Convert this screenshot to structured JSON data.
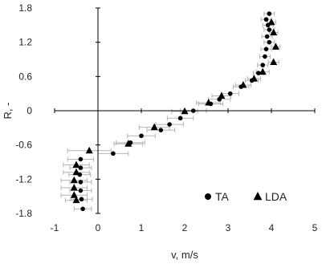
{
  "chart_data": {
    "type": "scatter",
    "title": "",
    "xlabel": "v, m/s",
    "ylabel": "R, -",
    "xlim": [
      -1,
      5
    ],
    "ylim": [
      -1.8,
      1.8
    ],
    "x_ticks": [
      "-1",
      "0",
      "1",
      "2",
      "3",
      "4",
      "5"
    ],
    "y_ticks": [
      "1.8",
      "1.2",
      "0.6",
      "0",
      "-0.6",
      "-1.2",
      "-1.8"
    ],
    "grid": false,
    "legend_position": "bottom-right",
    "series": [
      {
        "name": "TA",
        "marker": "circle",
        "color": "#000000",
        "error_bars": "horizontal",
        "error_color": "#b5b5b5",
        "points": [
          {
            "x": 3.95,
            "y": 1.7,
            "xerr": 0.12
          },
          {
            "x": 3.88,
            "y": 1.6,
            "xerr": 0.12
          },
          {
            "x": 3.92,
            "y": 1.5,
            "xerr": 0.12
          },
          {
            "x": 3.95,
            "y": 1.42,
            "xerr": 0.12
          },
          {
            "x": 3.9,
            "y": 1.3,
            "xerr": 0.12
          },
          {
            "x": 3.95,
            "y": 1.2,
            "xerr": 0.12
          },
          {
            "x": 3.88,
            "y": 1.08,
            "xerr": 0.12
          },
          {
            "x": 3.85,
            "y": 0.95,
            "xerr": 0.12
          },
          {
            "x": 3.8,
            "y": 0.8,
            "xerr": 0.12
          },
          {
            "x": 3.7,
            "y": 0.66,
            "xerr": 0.12
          },
          {
            "x": 3.55,
            "y": 0.53,
            "xerr": 0.15
          },
          {
            "x": 3.3,
            "y": 0.42,
            "xerr": 0.18
          },
          {
            "x": 3.05,
            "y": 0.3,
            "xerr": 0.2
          },
          {
            "x": 2.8,
            "y": 0.2,
            "xerr": 0.25
          },
          {
            "x": 2.6,
            "y": 0.12,
            "xerr": 0.28
          },
          {
            "x": 2.2,
            "y": 0.0,
            "xerr": 0.3
          },
          {
            "x": 1.9,
            "y": -0.13,
            "xerr": 0.3
          },
          {
            "x": 1.65,
            "y": -0.24,
            "xerr": 0.32
          },
          {
            "x": 1.45,
            "y": -0.34,
            "xerr": 0.32
          },
          {
            "x": 1.0,
            "y": -0.44,
            "xerr": 0.32
          },
          {
            "x": 0.75,
            "y": -0.56,
            "xerr": 0.33
          },
          {
            "x": 0.35,
            "y": -0.75,
            "xerr": 0.35
          },
          {
            "x": -0.4,
            "y": -0.85,
            "xerr": 0.3
          },
          {
            "x": -0.4,
            "y": -1.0,
            "xerr": 0.25
          },
          {
            "x": -0.42,
            "y": -1.12,
            "xerr": 0.25
          },
          {
            "x": -0.4,
            "y": -1.25,
            "xerr": 0.25
          },
          {
            "x": -0.4,
            "y": -1.4,
            "xerr": 0.25
          },
          {
            "x": -0.38,
            "y": -1.55,
            "xerr": 0.25
          },
          {
            "x": -0.35,
            "y": -1.72,
            "xerr": 0.2
          }
        ]
      },
      {
        "name": "LDA",
        "marker": "triangle",
        "color": "#000000",
        "error_bars": "horizontal",
        "error_color": "#b5b5b5",
        "points": [
          {
            "x": 4.0,
            "y": 1.55,
            "xerr": 0.1
          },
          {
            "x": 4.05,
            "y": 1.37,
            "xerr": 0.1
          },
          {
            "x": 4.1,
            "y": 1.12,
            "xerr": 0.1
          },
          {
            "x": 4.05,
            "y": 0.85,
            "xerr": 0.12
          },
          {
            "x": 3.8,
            "y": 0.68,
            "xerr": 0.15
          },
          {
            "x": 3.6,
            "y": 0.56,
            "xerr": 0.15
          },
          {
            "x": 3.35,
            "y": 0.45,
            "xerr": 0.18
          },
          {
            "x": 2.85,
            "y": 0.26,
            "xerr": 0.22
          },
          {
            "x": 2.55,
            "y": 0.14,
            "xerr": 0.28
          },
          {
            "x": 2.0,
            "y": -0.01,
            "xerr": 0.3
          },
          {
            "x": 1.3,
            "y": -0.29,
            "xerr": 0.35
          },
          {
            "x": 0.7,
            "y": -0.58,
            "xerr": 0.33
          },
          {
            "x": -0.2,
            "y": -0.7,
            "xerr": 0.5
          },
          {
            "x": -0.5,
            "y": -0.95,
            "xerr": 0.3
          },
          {
            "x": -0.5,
            "y": -1.08,
            "xerr": 0.3
          },
          {
            "x": -0.55,
            "y": -1.22,
            "xerr": 0.3
          },
          {
            "x": -0.55,
            "y": -1.35,
            "xerr": 0.3
          },
          {
            "x": -0.55,
            "y": -1.48,
            "xerr": 0.3
          },
          {
            "x": -0.5,
            "y": -1.57,
            "xerr": 0.25
          }
        ]
      }
    ]
  }
}
